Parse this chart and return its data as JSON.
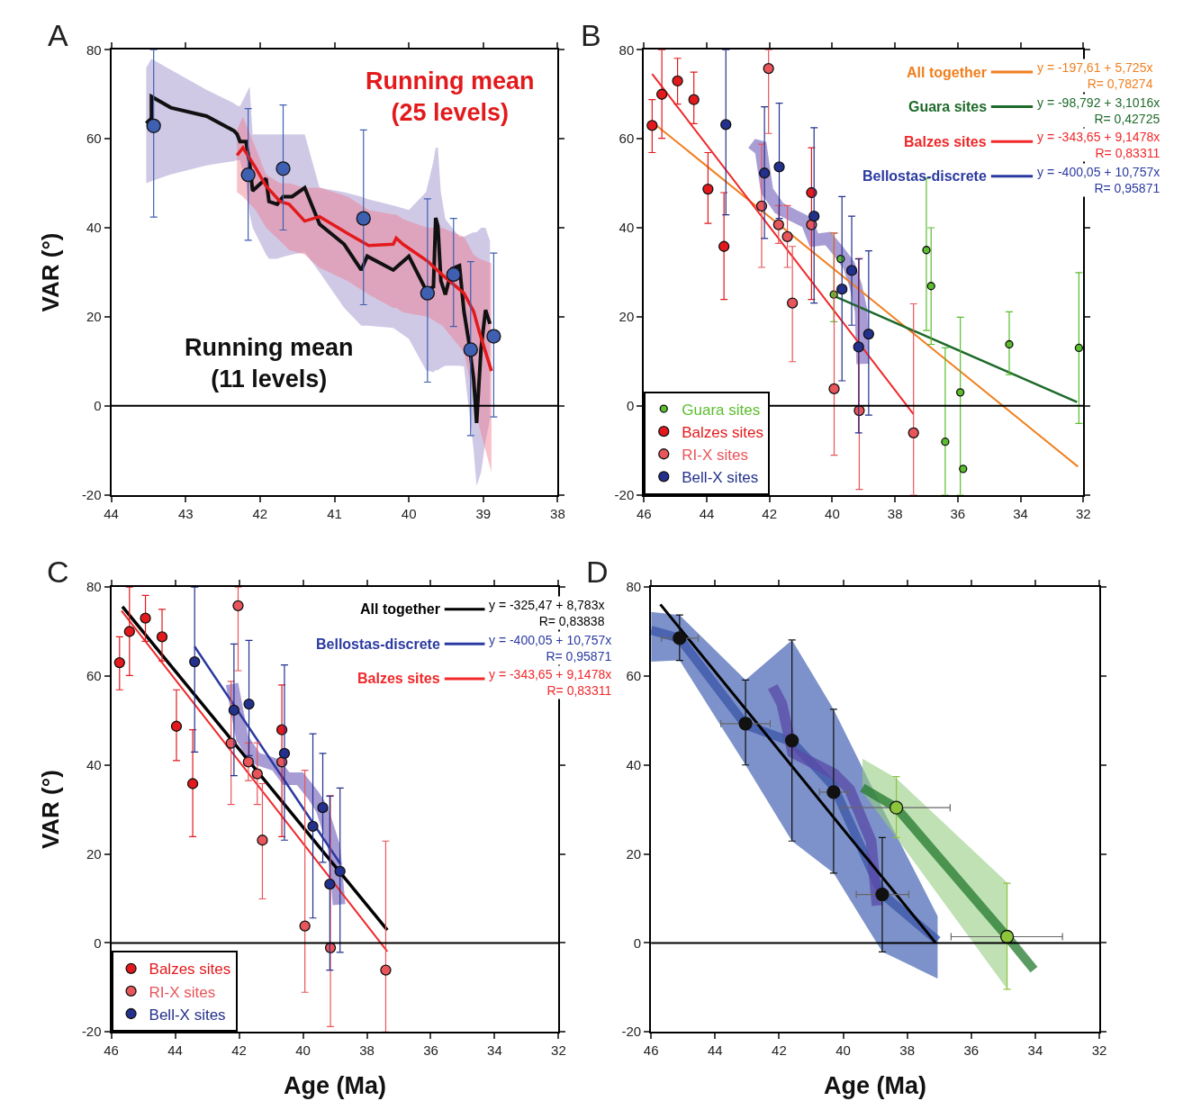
{
  "chart_data": [
    {
      "title": "A",
      "type": "scatter",
      "xlim": [
        44,
        38
      ],
      "xticks": [
        44,
        43,
        42,
        41,
        40,
        39,
        38
      ],
      "ylim": [
        -20,
        80
      ],
      "yticks": [
        -20,
        0,
        20,
        40,
        60,
        80
      ],
      "ylabel": "VAR (°)",
      "ref_lines": [
        {
          "axis": "y",
          "value": 0
        }
      ],
      "series": [
        {
          "name": "Running mean\n(11 levels)",
          "type": "line",
          "color": "#111111",
          "x": [
            43.53,
            43.46,
            43.46,
            43.2,
            42.72,
            42.35,
            42.31,
            42.27,
            42.19,
            42.14,
            42.1,
            41.92,
            41.88,
            41.77,
            41.69,
            41.57,
            41.4,
            41.2,
            40.87,
            40.64,
            40.56,
            40.21,
            40.0,
            39.77,
            39.67,
            39.64,
            39.61,
            39.57,
            39.51,
            39.42,
            39.32,
            39.26,
            39.2,
            39.13,
            39.09,
            39.03,
            38.97,
            38.91
          ],
          "values": [
            63.5,
            64.6,
            69.5,
            67.0,
            65.1,
            61.8,
            61.1,
            59.4,
            59.4,
            54.5,
            48.3,
            51.1,
            45.9,
            45.3,
            47.0,
            47.0,
            49.0,
            40.8,
            36.3,
            30.5,
            33.6,
            30.5,
            33.6,
            26.0,
            26.7,
            42.2,
            40.4,
            28.1,
            25.0,
            30.8,
            31.5,
            21.2,
            15.0,
            6.1,
            -3.9,
            12.9,
            21.5,
            18.4
          ],
          "upper": [
            76,
            78,
            78,
            75.5,
            71,
            68,
            67.5,
            67.3,
            70,
            71.7,
            61,
            61,
            61,
            61,
            61,
            61,
            61,
            49,
            48,
            47,
            46.5,
            45,
            44,
            48,
            55,
            58,
            58,
            48,
            42,
            40,
            38,
            38,
            38.5,
            39,
            39,
            40,
            40,
            37
          ],
          "lower": [
            50,
            50.5,
            50.5,
            52,
            54,
            55,
            55.2,
            55.2,
            50,
            43,
            40,
            34,
            33,
            33,
            33.5,
            34,
            34.5,
            30,
            22,
            18,
            18,
            17.5,
            15,
            8,
            7.5,
            8,
            8,
            8.5,
            9,
            9,
            9,
            8.8,
            0,
            -10,
            -18,
            -15,
            -8,
            -3
          ]
        },
        {
          "name": "Running mean\n(25 levels)",
          "type": "line",
          "color": "#e31a1c",
          "x": [
            42.31,
            42.23,
            42.06,
            41.92,
            41.73,
            41.61,
            41.4,
            41.2,
            40.82,
            40.54,
            40.21,
            40.17,
            40.08,
            39.75,
            39.55,
            39.26,
            39.13,
            39.05,
            38.89
          ],
          "values": [
            56.3,
            58.0,
            53.5,
            49.4,
            45.9,
            45.3,
            41.5,
            42.5,
            38.7,
            36.0,
            36.3,
            37.7,
            36.3,
            32.5,
            29.4,
            25.3,
            21.2,
            16.4,
            7.8
          ],
          "upper": [
            62,
            65,
            58,
            52,
            50,
            50,
            49,
            49,
            47,
            44,
            43,
            43,
            42,
            40,
            40,
            38,
            34,
            33,
            32
          ],
          "lower": [
            48,
            47,
            44,
            40,
            37,
            35,
            34,
            31,
            28,
            25,
            22,
            22,
            21,
            20,
            18,
            12,
            2,
            -5,
            -15
          ]
        },
        {
          "marker": "circle",
          "color": "#3f5fb0",
          "x": [
            43.43,
            42.16,
            41.69,
            40.61,
            39.75,
            39.4,
            39.17,
            38.86
          ],
          "values": [
            62.9,
            51.9,
            53.3,
            42.1,
            25.3,
            29.5,
            12.6,
            15.6
          ],
          "errors": [
            [
              42.4,
              80
            ],
            [
              37.2,
              66.8
            ],
            [
              39.5,
              67.6
            ],
            [
              22.7,
              62.0
            ],
            [
              5.3,
              46.5
            ],
            [
              17.8,
              42.1
            ],
            [
              -6.7,
              32.4
            ],
            [
              -2.5,
              34.3
            ]
          ]
        }
      ]
    },
    {
      "title": "B",
      "type": "scatter",
      "xlim": [
        46,
        32
      ],
      "xticks": [
        46,
        44,
        42,
        40,
        38,
        36,
        34,
        32
      ],
      "ylim": [
        -20,
        80
      ],
      "yticks": [
        -20,
        0,
        20,
        40,
        60,
        80
      ],
      "ref_lines": [
        {
          "axis": "y",
          "value": 0
        }
      ],
      "legend": "bottom left",
      "annotations": [
        "y = -197,61 + 5,725x\nR= 0,78274",
        "y = -98,792 + 3,1016x\nR= 0,42725",
        "y = -343,65 + 9,1478x\nR= 0,83311",
        "y = -400,05 + 10,757x\nR= 0,95871"
      ],
      "series": [
        {
          "type": "line",
          "color": "#8c7cc8",
          "x": [
            42.52,
            42.3,
            42.08,
            41.69,
            41.25,
            40.8,
            40.58,
            40.14,
            39.81,
            39.47,
            39.25,
            39.08,
            39.03
          ],
          "values": [
            57.1,
            59.1,
            48.3,
            44.4,
            42.8,
            41.2,
            37.2,
            37.6,
            34.8,
            31.6,
            26.9,
            21.3,
            9.4
          ]
        },
        {
          "name": "All together",
          "type": "line",
          "color": "#f07f1e",
          "x": [
            45.74,
            32.17
          ],
          "values": [
            63.8,
            -13.7
          ]
        },
        {
          "name": "Guara sites",
          "type": "line",
          "color": "#1e6a2a",
          "x": [
            39.92,
            32.2
          ],
          "values": [
            24.6,
            0.8
          ]
        },
        {
          "name": "Balzes sites",
          "type": "line",
          "color": "#f0282a",
          "x": [
            45.74,
            37.41
          ],
          "values": [
            74.6,
            -1.9
          ]
        },
        {
          "name": "Bellostas-discrete",
          "type": "line",
          "color": "#2b3aa0"
        },
        {
          "name": "Guara sites",
          "marker": "circle",
          "color": "#5bbd2f",
          "x": [
            39.73,
            39.95,
            37.0,
            36.85,
            36.4,
            35.92,
            35.83,
            34.36,
            32.14
          ],
          "values": [
            33.0,
            25.0,
            35.0,
            26.9,
            -8.1,
            3.0,
            -14.2,
            13.8,
            13.0
          ],
          "errors": [
            null,
            [
              18.9,
              38.8
            ],
            [
              16.9,
              51.1
            ],
            [
              13.8,
              40.0
            ],
            [
              -20,
              13.0
            ],
            [
              -20,
              19.9
            ],
            null,
            [
              7.0,
              21.1
            ],
            [
              -4.0,
              29.9
            ]
          ]
        },
        {
          "name": "Balzes sites",
          "marker": "circle",
          "color": "#e3191c",
          "x": [
            45.74,
            45.43,
            44.93,
            44.41,
            43.96,
            43.45,
            40.66
          ],
          "values": [
            63.0,
            70.0,
            73.0,
            68.8,
            48.7,
            35.8,
            47.9
          ],
          "errors": [
            [
              56.9,
              68.8
            ],
            [
              60.1,
              80
            ],
            [
              67.8,
              78.1
            ],
            [
              63.4,
              75.0
            ],
            [
              41.0,
              56.9
            ],
            [
              23.9,
              47.9
            ],
            [
              23.9,
              58.0
            ]
          ]
        },
        {
          "name": "RI-X sites",
          "marker": "circle",
          "color": "#e8555a",
          "x": [
            42.03,
            42.25,
            41.71,
            41.43,
            41.27,
            40.66,
            39.94,
            39.14,
            37.41
          ],
          "values": [
            75.8,
            44.9,
            40.7,
            38.0,
            23.1,
            40.7,
            3.8,
            -1.1,
            -6.1
          ],
          "errors": [
            [
              61.2,
              80
            ],
            [
              31.1,
              58.8
            ],
            [
              36.5,
              45.0
            ],
            [
              31.1,
              45.0
            ],
            [
              9.9,
              35.8
            ],
            null,
            [
              -11.1,
              38.8
            ],
            [
              -18.8,
              33.1
            ],
            [
              -20,
              22.9
            ]
          ]
        },
        {
          "name": "Bell-X sites",
          "marker": "circle",
          "color": "#23308c",
          "x": [
            43.39,
            42.16,
            41.69,
            40.58,
            39.38,
            39.69,
            39.16,
            38.84
          ],
          "values": [
            63.2,
            52.3,
            53.7,
            42.6,
            30.4,
            26.2,
            13.2,
            16.1
          ],
          "errors": [
            [
              42.9,
              80
            ],
            [
              37.6,
              67.2
            ],
            [
              42.1,
              68.0
            ],
            [
              23.1,
              62.5
            ],
            [
              18.1,
              42.6
            ],
            [
              5.6,
              47.0
            ],
            [
              -6.1,
              33.0
            ],
            [
              -2.1,
              34.8
            ]
          ]
        }
      ]
    },
    {
      "title": "C",
      "type": "scatter",
      "xlim": [
        46,
        32
      ],
      "xticks": [
        46,
        44,
        42,
        40,
        38,
        36,
        34,
        32
      ],
      "ylim": [
        -20,
        80
      ],
      "yticks": [
        -20,
        0,
        20,
        40,
        60,
        80
      ],
      "xlabel": "Age (Ma)",
      "ylabel": "VAR (°)",
      "ref_lines": [
        {
          "axis": "y",
          "value": 0
        }
      ],
      "legend": "bottom left",
      "annotations": [
        "y = -325,47 + 8,783x\nR= 0,83838",
        "y = -400,05 + 10,757x\nR= 0,95871",
        "y = -343,65 + 9,1478x\nR= 0,83311"
      ],
      "series": [
        {
          "type": "line",
          "color": "#8c7cc8",
          "x": [
            42.22,
            41.9,
            41.48,
            40.84,
            40.52,
            40.09,
            39.67,
            39.4,
            39.03,
            38.87
          ],
          "values": [
            58.2,
            46.0,
            41.5,
            40.0,
            36.9,
            36.9,
            33.1,
            30.0,
            21.6,
            8.6
          ]
        },
        {
          "name": "All together",
          "type": "line",
          "color": "#000000",
          "x": [
            45.65,
            37.36
          ],
          "values": [
            75.6,
            2.9
          ]
        },
        {
          "name": "Bellostas-discrete",
          "type": "line",
          "color": "#2b3aa0",
          "x": [
            43.39,
            38.83
          ],
          "values": [
            66.6,
            17.8
          ]
        },
        {
          "name": "Balzes sites",
          "type": "line",
          "color": "#f0282a",
          "x": [
            45.68,
            37.36
          ],
          "values": [
            74.7,
            -1.9
          ]
        },
        {
          "name": "Balzes sites",
          "marker": "circle",
          "color": "#e3191c",
          "x": [
            45.74,
            45.43,
            44.93,
            44.41,
            43.96,
            43.45,
            40.66
          ],
          "values": [
            63.0,
            70.0,
            73.0,
            68.8,
            48.7,
            35.8,
            47.9
          ],
          "errors": [
            [
              56.9,
              68.8
            ],
            [
              60.1,
              80
            ],
            [
              67.8,
              78.1
            ],
            [
              63.4,
              75.0
            ],
            [
              41.0,
              56.9
            ],
            [
              23.9,
              47.9
            ],
            [
              23.9,
              58.0
            ]
          ]
        },
        {
          "name": "RI-X sites",
          "marker": "circle",
          "color": "#e8555a",
          "x": [
            42.03,
            42.25,
            41.71,
            41.43,
            41.27,
            40.66,
            39.94,
            39.14,
            37.41
          ],
          "values": [
            75.8,
            44.9,
            40.7,
            38.0,
            23.1,
            40.7,
            3.8,
            -1.1,
            -6.1
          ],
          "errors": [
            [
              61.2,
              80
            ],
            [
              31.1,
              58.8
            ],
            [
              36.5,
              45.0
            ],
            [
              31.1,
              45.0
            ],
            [
              9.9,
              35.8
            ],
            null,
            [
              -11.1,
              38.8
            ],
            [
              -18.8,
              33.1
            ],
            [
              -20,
              22.9
            ]
          ]
        },
        {
          "name": "Bell-X sites",
          "marker": "circle",
          "color": "#23308c",
          "x": [
            43.39,
            42.16,
            41.69,
            40.58,
            39.38,
            39.69,
            39.16,
            38.84
          ],
          "values": [
            63.2,
            52.3,
            53.7,
            42.6,
            30.4,
            26.2,
            13.2,
            16.1
          ],
          "errors": [
            [
              42.9,
              80
            ],
            [
              37.6,
              67.2
            ],
            [
              42.1,
              68.0
            ],
            [
              23.1,
              62.5
            ],
            [
              18.1,
              42.6
            ],
            [
              5.6,
              47.0
            ],
            [
              -6.1,
              33.0
            ],
            [
              -2.1,
              34.8
            ]
          ]
        }
      ]
    },
    {
      "title": "D",
      "type": "scatter",
      "xlim": [
        46,
        32
      ],
      "xticks": [
        46,
        44,
        42,
        40,
        38,
        36,
        34,
        32
      ],
      "ylim": [
        -20,
        80
      ],
      "yticks": [
        -20,
        0,
        20,
        40,
        60,
        80
      ],
      "xlabel": "Age (Ma)",
      "ref_lines": [
        {
          "axis": "y",
          "value": 0
        }
      ],
      "series": [
        {
          "type": "line",
          "color": "#3a55a8",
          "x": [
            46,
            45.11,
            43.05,
            41.6,
            40.3,
            38.78,
            37.05
          ],
          "values": [
            70.3,
            68.5,
            49.0,
            45.2,
            35.2,
            11.0,
            0.5
          ],
          "upper": [
            74.4,
            73.7,
            59.1,
            68.1,
            52.5,
            30.4,
            6.0
          ],
          "lower": [
            63.2,
            63.5,
            40.0,
            22.9,
            15.7,
            -2.0,
            -8.0
          ]
        },
        {
          "type": "line",
          "color": "#5a4aa8",
          "x": [
            42.2,
            41.92,
            41.58,
            40.28,
            39.8,
            39.13,
            38.94
          ],
          "values": [
            57.6,
            53.8,
            42.8,
            38.0,
            34.5,
            22.9,
            8.4
          ]
        },
        {
          "type": "line",
          "color": "#237a2e",
          "x": [
            39.4,
            38.34,
            34.88,
            34.04
          ],
          "values": [
            34.9,
            30.4,
            1.4,
            -6.0
          ],
          "upper": [
            41.4,
            37.0,
            13.6,
            null
          ],
          "lower": [
            34.0,
            23.7,
            -10.4,
            null
          ]
        },
        {
          "type": "line",
          "color": "#000000",
          "x": [
            45.71,
            37.11
          ],
          "values": [
            76.1,
            0
          ]
        },
        {
          "marker": "circle",
          "color": "#111111",
          "x": [
            45.11,
            43.05,
            41.6,
            40.3,
            38.78
          ],
          "values": [
            68.5,
            49.3,
            45.5,
            33.9,
            10.9
          ],
          "errors": [
            [
              63.5,
              73.7
            ],
            [
              40.0,
              59.1
            ],
            [
              22.9,
              68.1
            ],
            [
              15.7,
              52.5
            ],
            [
              -2.0,
              23.7
            ]
          ],
          "xerrors": [
            [
              44.53,
              45.68
            ],
            [
              42.28,
              43.82
            ],
            null,
            [
              39.84,
              40.74
            ],
            [
              37.95,
              39.59
            ]
          ]
        },
        {
          "marker": "circle",
          "color": "#8cc43c",
          "x": [
            38.34,
            34.88
          ],
          "values": [
            30.4,
            1.4
          ],
          "errors": [
            [
              23.7,
              37.4
            ],
            [
              -10.4,
              13.4
            ]
          ],
          "xerrors": [
            [
              36.66,
              40.04
            ],
            [
              33.15,
              36.63
            ]
          ]
        }
      ]
    }
  ]
}
